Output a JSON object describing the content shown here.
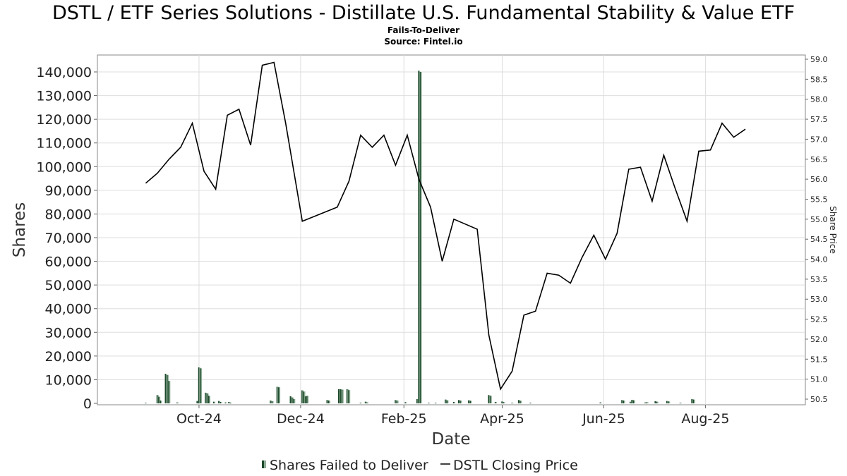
{
  "title": "DSTL / ETF Series Solutions - Distillate U.S. Fundamental Stability & Value ETF",
  "subtitle": "Fails-To-Deliver",
  "source": "Source: Fintel.io",
  "chart_data": {
    "type": "bar+line",
    "xlabel": "Date",
    "ylabel": "Shares",
    "y2label": "Share Price",
    "x_range": [
      "2024-08-01",
      "2025-09-30"
    ],
    "ylim": [
      0,
      148000
    ],
    "y2lim": [
      50.4,
      59.1
    ],
    "yticks": [
      0,
      10000,
      20000,
      30000,
      40000,
      50000,
      60000,
      70000,
      80000,
      90000,
      100000,
      110000,
      120000,
      130000,
      140000
    ],
    "yticklabels": [
      "0",
      "10,000",
      "20,000",
      "30,000",
      "40,000",
      "50,000",
      "60,000",
      "70,000",
      "80,000",
      "90,000",
      "100,000",
      "110,000",
      "120,000",
      "130,000",
      "140,000"
    ],
    "y2ticks": [
      50.5,
      51.0,
      51.5,
      52.0,
      52.5,
      53.0,
      53.5,
      54.0,
      54.5,
      55.0,
      55.5,
      56.0,
      56.5,
      57.0,
      57.5,
      58.0,
      58.5,
      59.0
    ],
    "y2ticklabels": [
      "50.5",
      "51.0",
      "51.5",
      "52.0",
      "52.5",
      "53.0",
      "53.5",
      "54.0",
      "54.5",
      "55.0",
      "55.5",
      "56.0",
      "56.5",
      "57.0",
      "57.5",
      "58.0",
      "58.5",
      "59.0"
    ],
    "xticks": [
      "2024-10-01",
      "2024-12-01",
      "2025-02-01",
      "2025-04-01",
      "2025-06-01",
      "2025-08-01"
    ],
    "xticklabels": [
      "Oct-24",
      "Dec-24",
      "Feb-25",
      "Apr-25",
      "Jun-25",
      "Aug-25"
    ],
    "grid": true,
    "legend_position": "bottom",
    "series": [
      {
        "name": "Shares Failed to Deliver",
        "type": "bar",
        "color": "#1c4a2a",
        "points": [
          [
            "2024-08-30",
            200
          ],
          [
            "2024-09-06",
            3500
          ],
          [
            "2024-09-07",
            2800
          ],
          [
            "2024-09-08",
            1200
          ],
          [
            "2024-09-11",
            12500
          ],
          [
            "2024-09-12",
            12000
          ],
          [
            "2024-09-13",
            9500
          ],
          [
            "2024-09-18",
            400
          ],
          [
            "2024-09-30",
            1000
          ],
          [
            "2024-10-01",
            15200
          ],
          [
            "2024-10-02",
            14800
          ],
          [
            "2024-10-05",
            4500
          ],
          [
            "2024-10-06",
            4200
          ],
          [
            "2024-10-07",
            3200
          ],
          [
            "2024-10-10",
            700
          ],
          [
            "2024-10-13",
            1000
          ],
          [
            "2024-10-14",
            600
          ],
          [
            "2024-10-17",
            400
          ],
          [
            "2024-10-19",
            600
          ],
          [
            "2024-10-20",
            300
          ],
          [
            "2024-11-13",
            1200
          ],
          [
            "2024-11-14",
            900
          ],
          [
            "2024-11-17",
            7000
          ],
          [
            "2024-11-18",
            6800
          ],
          [
            "2024-11-25",
            3000
          ],
          [
            "2024-11-26",
            2500
          ],
          [
            "2024-11-27",
            1800
          ],
          [
            "2024-12-02",
            5500
          ],
          [
            "2024-12-03",
            5000
          ],
          [
            "2024-12-04",
            3000
          ],
          [
            "2024-12-05",
            3200
          ],
          [
            "2024-12-17",
            1400
          ],
          [
            "2024-12-18",
            1200
          ],
          [
            "2024-12-24",
            6000
          ],
          [
            "2024-12-25",
            6000
          ],
          [
            "2024-12-26",
            5800
          ],
          [
            "2024-12-29",
            6000
          ],
          [
            "2024-12-30",
            5600
          ],
          [
            "2025-01-06",
            300
          ],
          [
            "2025-01-09",
            700
          ],
          [
            "2025-01-10",
            400
          ],
          [
            "2025-01-27",
            1400
          ],
          [
            "2025-01-28",
            1200
          ],
          [
            "2025-02-02",
            500
          ],
          [
            "2025-02-09",
            1800
          ],
          [
            "2025-02-10",
            140500
          ],
          [
            "2025-02-11",
            140000
          ],
          [
            "2025-02-16",
            300
          ],
          [
            "2025-02-20",
            200
          ],
          [
            "2025-02-26",
            1600
          ],
          [
            "2025-02-27",
            1300
          ],
          [
            "2025-03-03",
            600
          ],
          [
            "2025-03-06",
            1400
          ],
          [
            "2025-03-07",
            1200
          ],
          [
            "2025-03-12",
            1300
          ],
          [
            "2025-03-13",
            1100
          ],
          [
            "2025-03-24",
            3500
          ],
          [
            "2025-03-25",
            3200
          ],
          [
            "2025-03-28",
            600
          ],
          [
            "2025-04-01",
            800
          ],
          [
            "2025-04-02",
            500
          ],
          [
            "2025-04-07",
            300
          ],
          [
            "2025-04-11",
            1400
          ],
          [
            "2025-04-12",
            1100
          ],
          [
            "2025-04-18",
            300
          ],
          [
            "2025-05-30",
            400
          ],
          [
            "2025-06-12",
            1400
          ],
          [
            "2025-06-13",
            1200
          ],
          [
            "2025-06-17",
            700
          ],
          [
            "2025-06-18",
            1500
          ],
          [
            "2025-06-19",
            1300
          ],
          [
            "2025-06-26",
            400
          ],
          [
            "2025-06-27",
            500
          ],
          [
            "2025-07-02",
            900
          ],
          [
            "2025-07-03",
            700
          ],
          [
            "2025-07-09",
            1000
          ],
          [
            "2025-07-10",
            800
          ],
          [
            "2025-07-17",
            300
          ],
          [
            "2025-07-24",
            1800
          ],
          [
            "2025-07-25",
            1600
          ]
        ]
      },
      {
        "name": "DSTL Closing Price",
        "type": "line",
        "color": "#000000",
        "points": [
          [
            "2024-08-30",
            55.9
          ],
          [
            "2024-09-06",
            56.15
          ],
          [
            "2024-09-13",
            56.5
          ],
          [
            "2024-09-20",
            56.8
          ],
          [
            "2024-09-27",
            57.4
          ],
          [
            "2024-10-04",
            56.2
          ],
          [
            "2024-10-11",
            55.75
          ],
          [
            "2024-10-18",
            57.6
          ],
          [
            "2024-10-25",
            57.75
          ],
          [
            "2024-11-01",
            56.85
          ],
          [
            "2024-11-08",
            58.85
          ],
          [
            "2024-11-15",
            58.92
          ],
          [
            "2024-11-22",
            57.4
          ],
          [
            "2024-12-02",
            54.95
          ],
          [
            "2024-12-23",
            55.3
          ],
          [
            "2024-12-30",
            55.95
          ],
          [
            "2025-01-06",
            57.1
          ],
          [
            "2025-01-13",
            56.8
          ],
          [
            "2025-01-20",
            57.1
          ],
          [
            "2025-01-27",
            56.35
          ],
          [
            "2025-02-03",
            57.1
          ],
          [
            "2025-02-10",
            56.0
          ],
          [
            "2025-02-17",
            55.3
          ],
          [
            "2025-02-24",
            53.95
          ],
          [
            "2025-03-03",
            55.0
          ],
          [
            "2025-03-17",
            54.75
          ],
          [
            "2025-03-24",
            52.1
          ],
          [
            "2025-03-31",
            50.75
          ],
          [
            "2025-04-07",
            51.2
          ],
          [
            "2025-04-14",
            52.6
          ],
          [
            "2025-04-21",
            52.7
          ],
          [
            "2025-04-28",
            53.65
          ],
          [
            "2025-05-05",
            53.6
          ],
          [
            "2025-05-12",
            53.4
          ],
          [
            "2025-05-19",
            54.05
          ],
          [
            "2025-05-26",
            54.6
          ],
          [
            "2025-06-02",
            54.0
          ],
          [
            "2025-06-09",
            54.65
          ],
          [
            "2025-06-16",
            56.25
          ],
          [
            "2025-06-23",
            56.3
          ],
          [
            "2025-06-30",
            55.45
          ],
          [
            "2025-07-07",
            56.6
          ],
          [
            "2025-07-14",
            55.75
          ],
          [
            "2025-07-21",
            54.95
          ],
          [
            "2025-07-28",
            56.7
          ],
          [
            "2025-08-04",
            56.73
          ],
          [
            "2025-08-11",
            57.4
          ],
          [
            "2025-08-18",
            57.05
          ],
          [
            "2025-08-25",
            57.25
          ]
        ]
      }
    ]
  }
}
